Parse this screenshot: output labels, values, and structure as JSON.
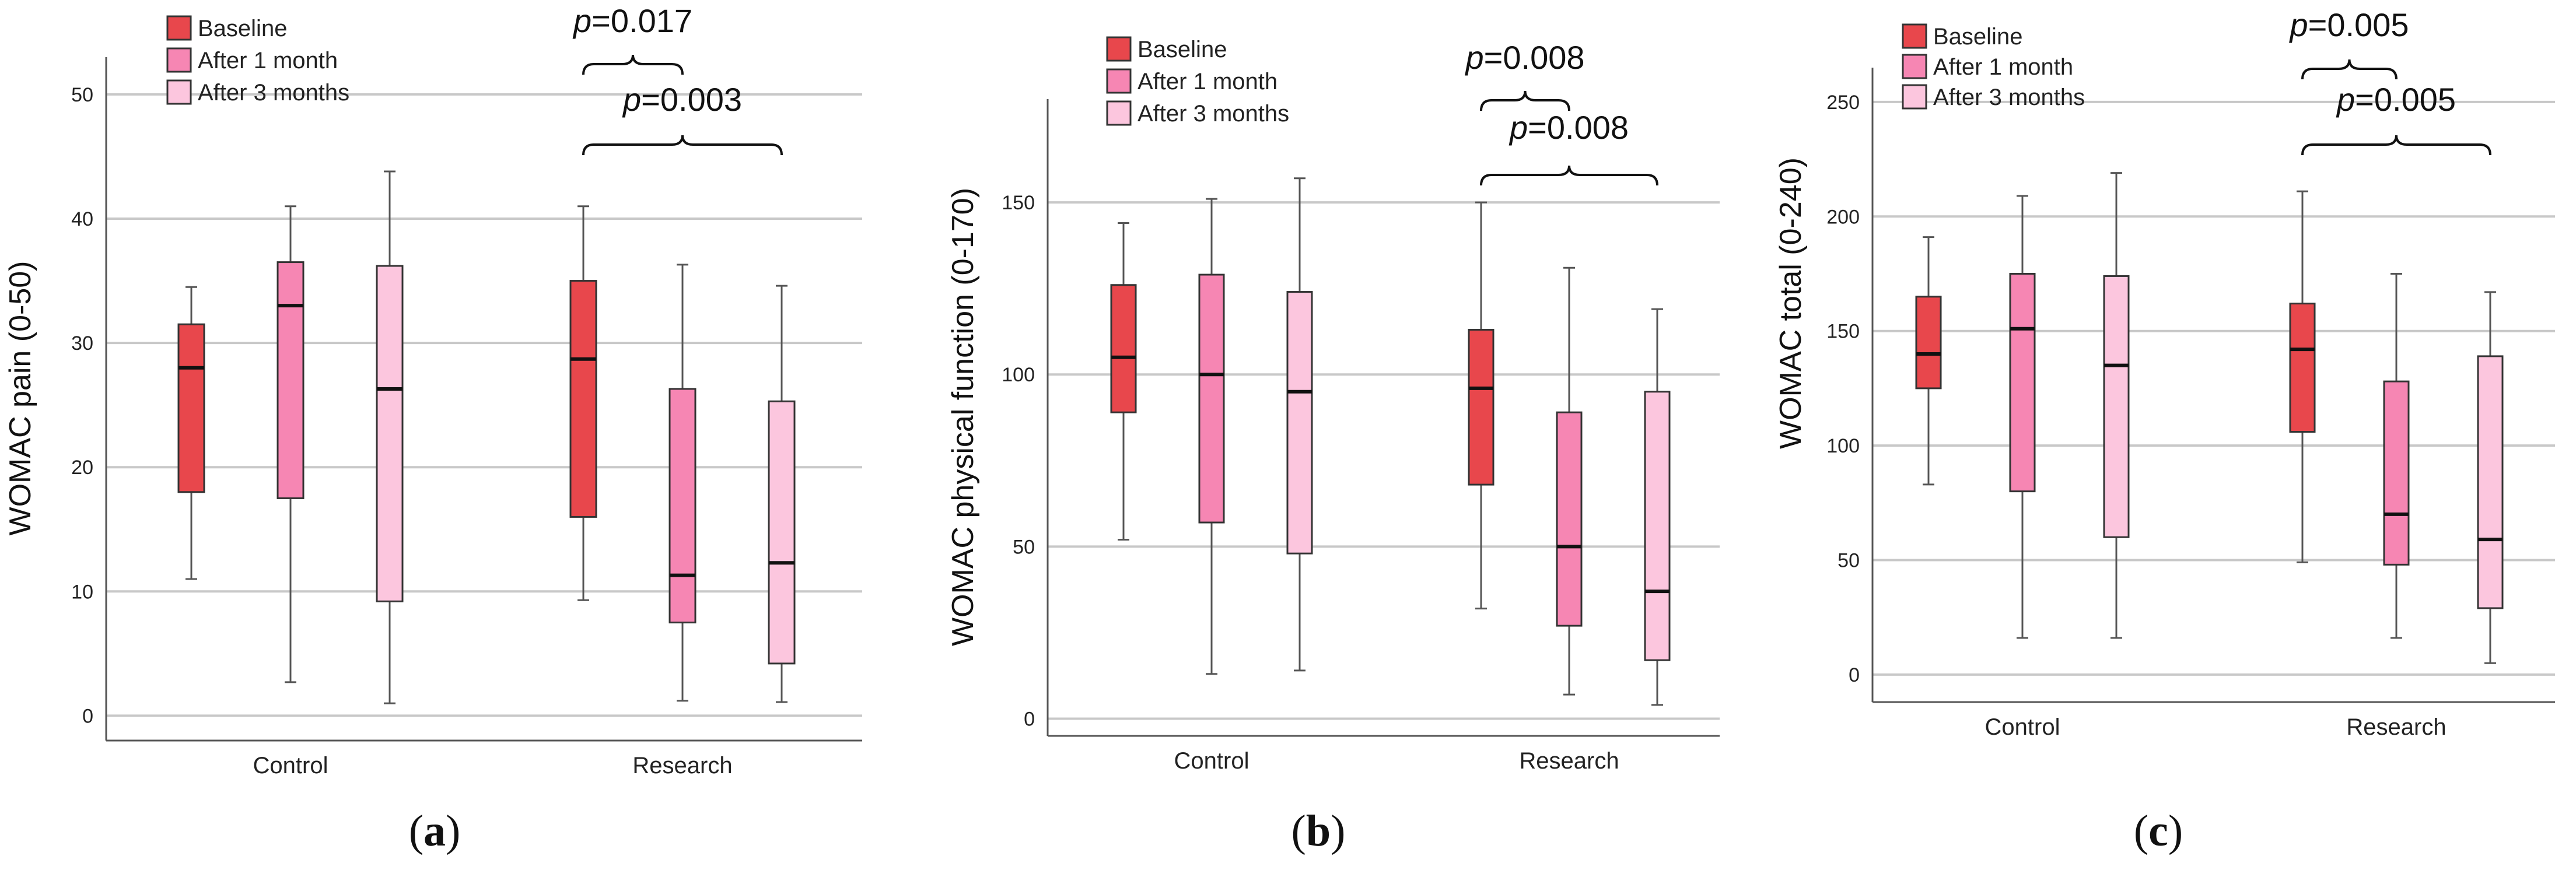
{
  "figure": {
    "legend": {
      "baseline": "Baseline",
      "after1": "After 1 month",
      "after3": "After 3 months"
    },
    "colors": {
      "baseline": "#e8474c",
      "after1": "#f686b3",
      "after3": "#fcc6de",
      "grid": "#c8c8c8",
      "axis": "#555555"
    }
  },
  "chart_data": [
    {
      "type": "boxplot",
      "panel": "a",
      "ylabel": "WOMAC pain (0-50)",
      "ylim": [
        -2,
        53
      ],
      "yticks": [
        "0",
        "10",
        "20",
        "30",
        "40",
        "50"
      ],
      "categories": [
        "Control",
        "Research"
      ],
      "legend_position": "top-left",
      "series": [
        {
          "name": "Baseline",
          "boxes": [
            {
              "min": 11,
              "q1": 18,
              "median": 28,
              "q3": 31.5,
              "max": 34.5
            },
            {
              "min": 9.3,
              "q1": 16,
              "median": 28.7,
              "q3": 35,
              "max": 41
            }
          ]
        },
        {
          "name": "After 1 month",
          "boxes": [
            {
              "min": 2.7,
              "q1": 17.5,
              "median": 33,
              "q3": 36.5,
              "max": 41
            },
            {
              "min": 1.2,
              "q1": 7.5,
              "median": 11.3,
              "q3": 26.3,
              "max": 36.3
            }
          ]
        },
        {
          "name": "After 3 months",
          "boxes": [
            {
              "min": 1,
              "q1": 9.2,
              "median": 26.3,
              "q3": 36.2,
              "max": 43.8
            },
            {
              "min": 1.1,
              "q1": 4.2,
              "median": 12.3,
              "q3": 25.3,
              "max": 34.6
            }
          ]
        }
      ],
      "annotations": [
        {
          "p": "p",
          "text": "=0.017",
          "from_series": 0,
          "to_series": 1,
          "category": 1
        },
        {
          "p": "p",
          "text": "=0.003",
          "from_series": 0,
          "to_series": 2,
          "category": 1
        }
      ],
      "caption": "(a)"
    },
    {
      "type": "boxplot",
      "panel": "b",
      "ylabel": "WOMAC physical function (0-170)",
      "ylim": [
        -5,
        180
      ],
      "yticks": [
        "0",
        "50",
        "100",
        "150"
      ],
      "categories": [
        "Control",
        "Research"
      ],
      "legend_position": "top-left",
      "series": [
        {
          "name": "Baseline",
          "boxes": [
            {
              "min": 52,
              "q1": 89,
              "median": 105,
              "q3": 126,
              "max": 144
            },
            {
              "min": 32,
              "q1": 68,
              "median": 96,
              "q3": 113,
              "max": 150
            }
          ]
        },
        {
          "name": "After 1 month",
          "boxes": [
            {
              "min": 13,
              "q1": 57,
              "median": 100,
              "q3": 129,
              "max": 151
            },
            {
              "min": 7,
              "q1": 27,
              "median": 50,
              "q3": 89,
              "max": 131
            }
          ]
        },
        {
          "name": "After 3 months",
          "boxes": [
            {
              "min": 14,
              "q1": 48,
              "median": 95,
              "q3": 124,
              "max": 157
            },
            {
              "min": 4,
              "q1": 17,
              "median": 37,
              "q3": 95,
              "max": 119
            }
          ]
        }
      ],
      "annotations": [
        {
          "p": "p",
          "text": "=0.008",
          "from_series": 0,
          "to_series": 1,
          "category": 1
        },
        {
          "p": "p",
          "text": "=0.008",
          "from_series": 0,
          "to_series": 2,
          "category": 1
        }
      ],
      "caption": "(b)"
    },
    {
      "type": "boxplot",
      "panel": "c",
      "ylabel": "WOMAC total (0-240)",
      "ylim": [
        -12,
        265
      ],
      "yticks": [
        "0",
        "50",
        "100",
        "150",
        "200",
        "250"
      ],
      "categories": [
        "Control",
        "Research"
      ],
      "legend_position": "top-left",
      "series": [
        {
          "name": "Baseline",
          "boxes": [
            {
              "min": 83,
              "q1": 125,
              "median": 140,
              "q3": 165,
              "max": 191
            },
            {
              "min": 49,
              "q1": 106,
              "median": 142,
              "q3": 162,
              "max": 211
            }
          ]
        },
        {
          "name": "After 1 month",
          "boxes": [
            {
              "min": 16,
              "q1": 80,
              "median": 151,
              "q3": 175,
              "max": 209
            },
            {
              "min": 16,
              "q1": 48,
              "median": 70,
              "q3": 128,
              "max": 175
            }
          ]
        },
        {
          "name": "After 3 months",
          "boxes": [
            {
              "min": 16,
              "q1": 60,
              "median": 135,
              "q3": 174,
              "max": 219
            },
            {
              "min": 5,
              "q1": 29,
              "median": 59,
              "q3": 139,
              "max": 167
            }
          ]
        }
      ],
      "annotations": [
        {
          "p": "p",
          "text": "=0.005",
          "from_series": 0,
          "to_series": 1,
          "category": 1
        },
        {
          "p": "p",
          "text": "=0.005",
          "from_series": 0,
          "to_series": 2,
          "category": 1
        }
      ],
      "caption": "(c)"
    }
  ]
}
